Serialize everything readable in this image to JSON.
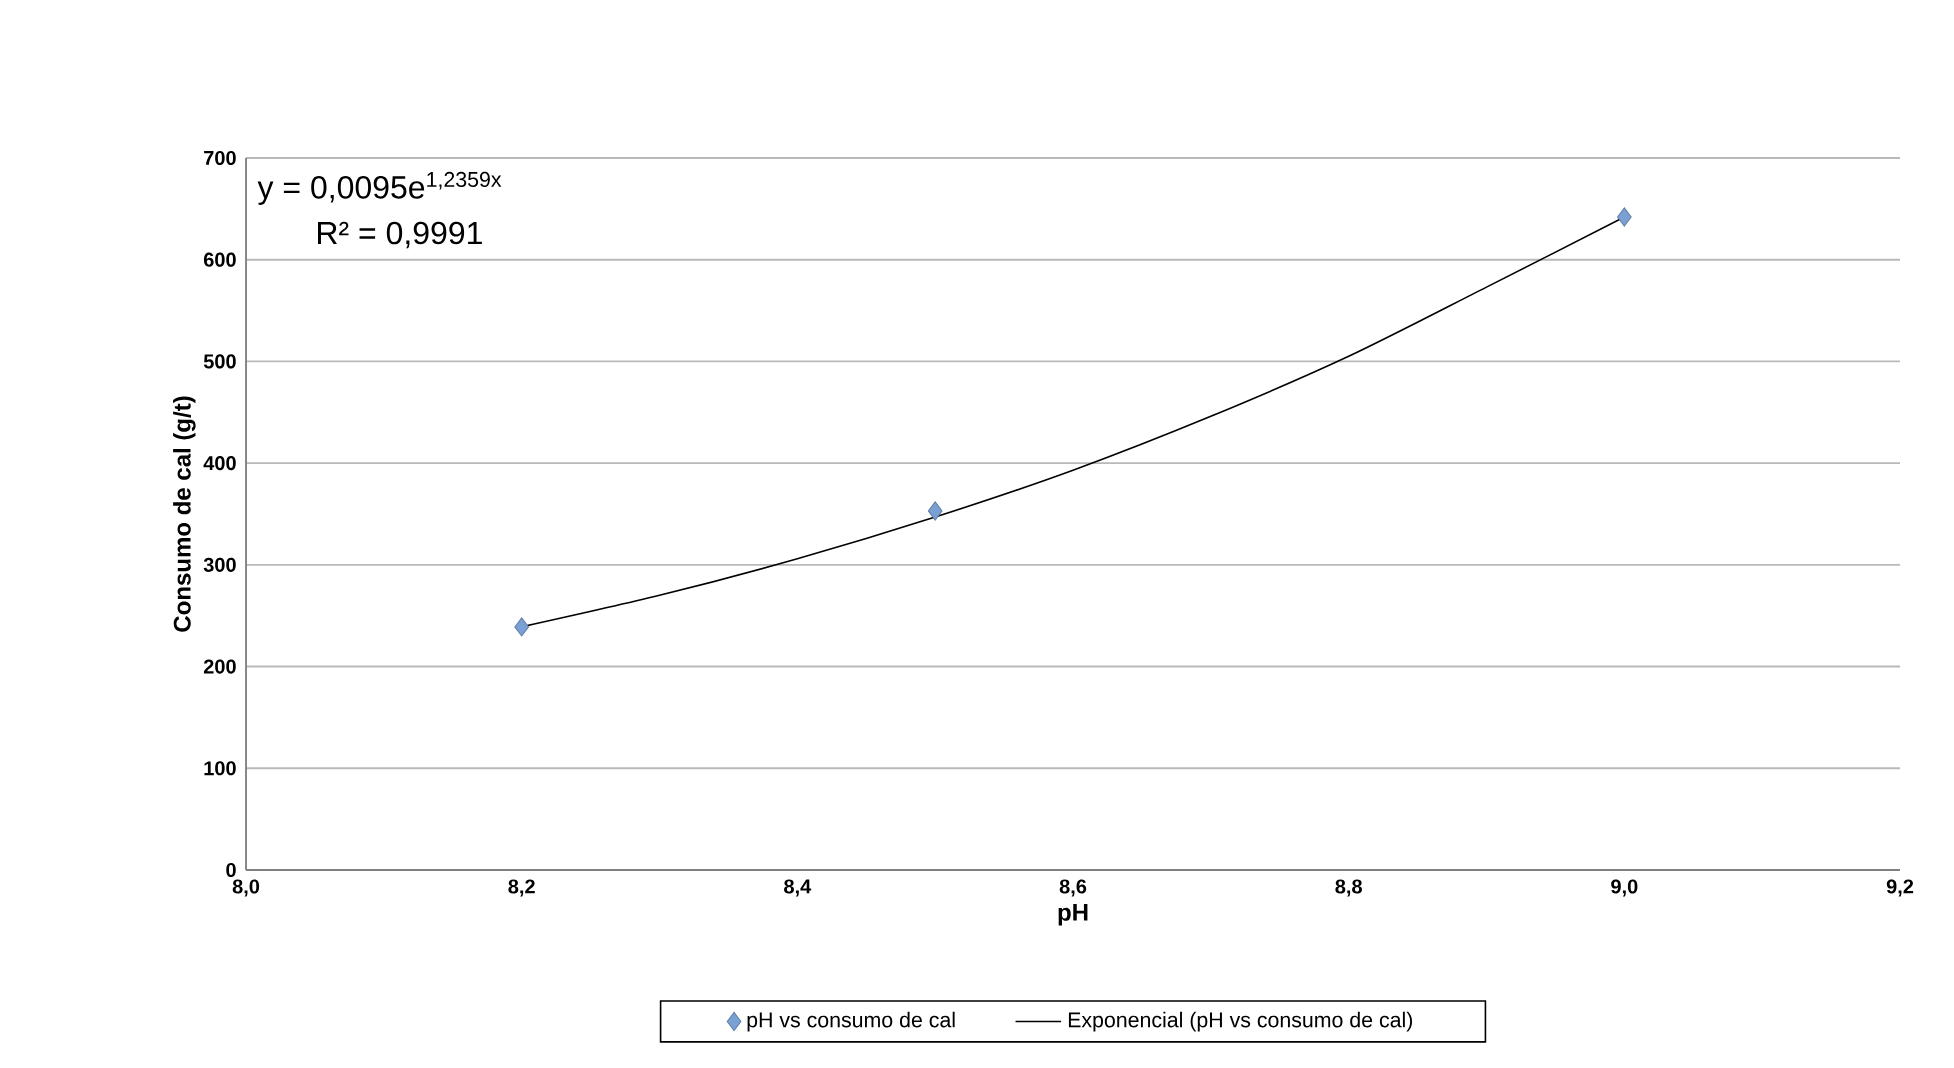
{
  "chart_data": {
    "type": "scatter",
    "xlabel": "pH",
    "ylabel": "Consumo de cal (g/t)",
    "xlim": [
      8.0,
      9.2
    ],
    "ylim": [
      0,
      700
    ],
    "xticks": [
      {
        "value": 8.0,
        "label": "8,0"
      },
      {
        "value": 8.2,
        "label": "8,2"
      },
      {
        "value": 8.4,
        "label": "8,4"
      },
      {
        "value": 8.6,
        "label": "8,6"
      },
      {
        "value": 8.8,
        "label": "8,8"
      },
      {
        "value": 9.0,
        "label": "9,0"
      },
      {
        "value": 9.2,
        "label": "9,2"
      }
    ],
    "yticks": [
      0,
      100,
      200,
      300,
      400,
      500,
      600,
      700
    ],
    "grid": "y",
    "legend": "bottom",
    "marker": "diamond",
    "annotations": [
      "y = 0,0095e$^{1,2359x}$",
      "R² = 0,9991"
    ],
    "series": [
      {
        "name": "pH vs consumo de cal",
        "color": "#7ba0d4",
        "x": [
          8.2,
          8.5,
          9.0
        ],
        "values": [
          239,
          353,
          642
        ]
      },
      {
        "name": "Exponencial (pH vs consumo de cal)",
        "type": "line",
        "color": "#000000",
        "marker": "none",
        "line_style": "solid",
        "x": [
          8.2,
          8.3,
          8.4,
          8.5,
          8.6,
          8.7,
          8.8,
          8.9,
          9.0
        ],
        "values": [
          239,
          270,
          306,
          347,
          393,
          446,
          505,
          573,
          642
        ]
      }
    ]
  }
}
